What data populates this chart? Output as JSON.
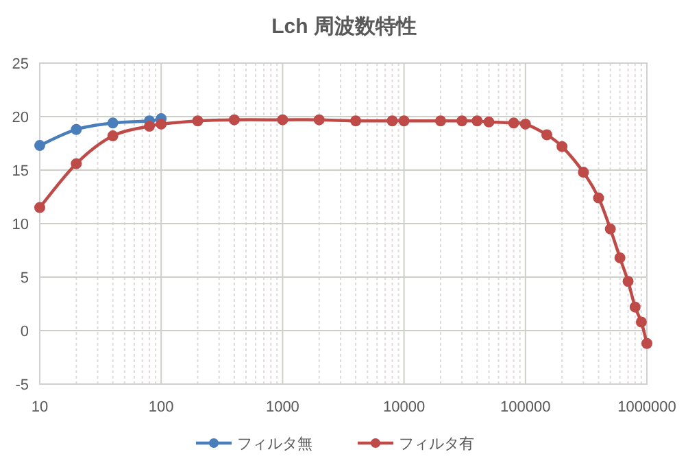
{
  "chart_data": {
    "type": "line",
    "title": "Lch 周波数特性",
    "log": "x",
    "grid": true,
    "legend": "bottom",
    "marker": "circle",
    "xlim": [
      10,
      1000000
    ],
    "ylim": [
      -5,
      25
    ],
    "xticks": [
      10,
      100,
      1000,
      10000,
      100000,
      1000000
    ],
    "yticks": [
      -5,
      0,
      5,
      10,
      15,
      20,
      25
    ],
    "series": [
      {
        "name": "フィルタ無",
        "color": "#4a7ebb",
        "x": [
          10,
          20,
          40,
          80,
          100
        ],
        "values": [
          17.3,
          18.8,
          19.4,
          19.6,
          19.8
        ]
      },
      {
        "name": "フィルタ有",
        "color": "#be4b48",
        "x": [
          10,
          20,
          40,
          80,
          100,
          200,
          400,
          1000,
          2000,
          4000,
          8000,
          10000,
          20000,
          30000,
          40000,
          50000,
          80000,
          100000,
          150000,
          200000,
          300000,
          400000,
          500000,
          600000,
          700000,
          800000,
          900000,
          1000000
        ],
        "values": [
          11.5,
          15.6,
          18.2,
          19.1,
          19.3,
          19.6,
          19.7,
          19.7,
          19.7,
          19.6,
          19.6,
          19.6,
          19.6,
          19.6,
          19.6,
          19.5,
          19.4,
          19.3,
          18.3,
          17.2,
          14.8,
          12.4,
          9.5,
          6.8,
          4.6,
          2.2,
          0.8,
          -1.2
        ]
      }
    ]
  }
}
